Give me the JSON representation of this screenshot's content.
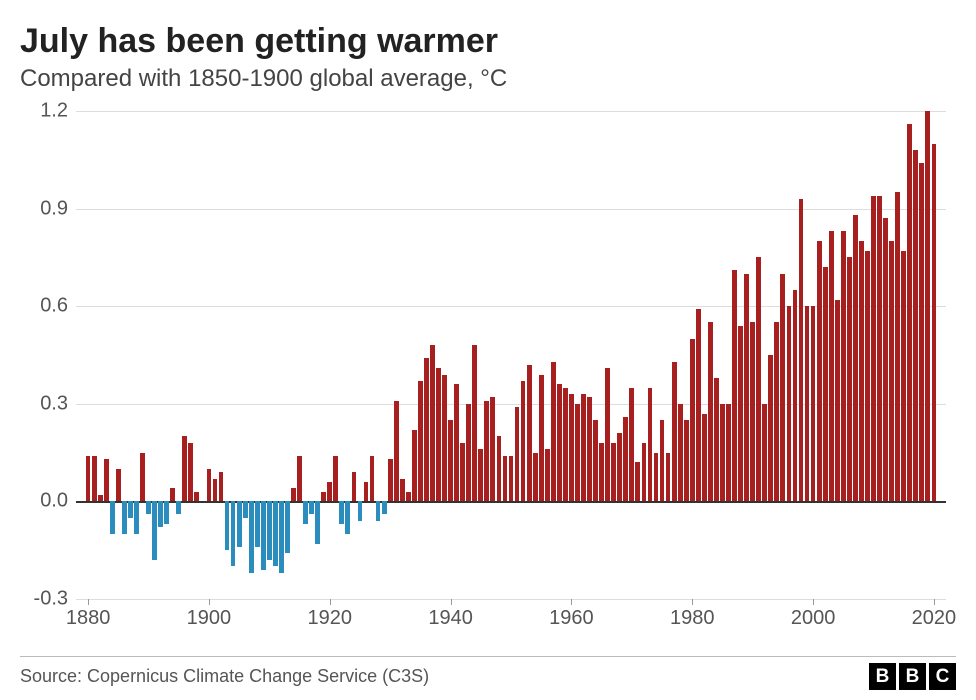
{
  "title": "July has been getting warmer",
  "subtitle": "Compared with 1850-1900 global average, °C",
  "source": "Source: Copernicus Climate Change Service (C3S)",
  "logo_letters": [
    "B",
    "B",
    "C"
  ],
  "chart": {
    "type": "bar",
    "ylim": [
      -0.3,
      1.2
    ],
    "yticks": [
      -0.3,
      0.0,
      0.3,
      0.6,
      0.9,
      1.2
    ],
    "ytick_labels": [
      "-0.3",
      "0.0",
      "0.3",
      "0.6",
      "0.9",
      "1.2"
    ],
    "xlim": [
      1878,
      2022
    ],
    "xticks": [
      1880,
      1900,
      1920,
      1940,
      1960,
      1980,
      2000,
      2020
    ],
    "xtick_labels": [
      "1880",
      "1900",
      "1920",
      "1940",
      "1960",
      "1980",
      "2000",
      "2020"
    ],
    "grid_color": "#dddddd",
    "zero_color": "#333333",
    "pos_color": "#a81f1f",
    "neg_color": "#2b8cbe",
    "background_color": "#ffffff",
    "label_fontsize": 20,
    "title_fontsize": 34,
    "subtitle_fontsize": 24,
    "bar_gap_ratio": 0.2,
    "years": [
      1880,
      1881,
      1882,
      1883,
      1884,
      1885,
      1886,
      1887,
      1888,
      1889,
      1890,
      1891,
      1892,
      1893,
      1894,
      1895,
      1896,
      1897,
      1898,
      1899,
      1900,
      1901,
      1902,
      1903,
      1904,
      1905,
      1906,
      1907,
      1908,
      1909,
      1910,
      1911,
      1912,
      1913,
      1914,
      1915,
      1916,
      1917,
      1918,
      1919,
      1920,
      1921,
      1922,
      1923,
      1924,
      1925,
      1926,
      1927,
      1928,
      1929,
      1930,
      1931,
      1932,
      1933,
      1934,
      1935,
      1936,
      1937,
      1938,
      1939,
      1940,
      1941,
      1942,
      1943,
      1944,
      1945,
      1946,
      1947,
      1948,
      1949,
      1950,
      1951,
      1952,
      1953,
      1954,
      1955,
      1956,
      1957,
      1958,
      1959,
      1960,
      1961,
      1962,
      1963,
      1964,
      1965,
      1966,
      1967,
      1968,
      1969,
      1970,
      1971,
      1972,
      1973,
      1974,
      1975,
      1976,
      1977,
      1978,
      1979,
      1980,
      1981,
      1982,
      1983,
      1984,
      1985,
      1986,
      1987,
      1988,
      1989,
      1990,
      1991,
      1992,
      1993,
      1994,
      1995,
      1996,
      1997,
      1998,
      1999,
      2000,
      2001,
      2002,
      2003,
      2004,
      2005,
      2006,
      2007,
      2008,
      2009,
      2010,
      2011,
      2012,
      2013,
      2014,
      2015,
      2016,
      2017,
      2018,
      2019,
      2020
    ],
    "values": [
      0.14,
      0.14,
      0.02,
      0.13,
      -0.1,
      0.1,
      -0.1,
      -0.05,
      -0.1,
      0.15,
      -0.04,
      -0.18,
      -0.08,
      -0.07,
      0.04,
      -0.04,
      0.2,
      0.18,
      0.03,
      0.0,
      0.1,
      0.07,
      0.09,
      -0.15,
      -0.2,
      -0.14,
      -0.05,
      -0.22,
      -0.14,
      -0.21,
      -0.18,
      -0.2,
      -0.22,
      -0.16,
      0.04,
      0.14,
      -0.07,
      -0.04,
      -0.13,
      0.03,
      0.06,
      0.14,
      -0.07,
      -0.1,
      0.09,
      -0.06,
      0.06,
      0.14,
      -0.06,
      -0.04,
      0.13,
      0.31,
      0.07,
      0.03,
      0.22,
      0.37,
      0.44,
      0.48,
      0.41,
      0.39,
      0.25,
      0.36,
      0.18,
      0.3,
      0.48,
      0.16,
      0.31,
      0.32,
      0.2,
      0.14,
      0.14,
      0.29,
      0.37,
      0.42,
      0.15,
      0.39,
      0.16,
      0.43,
      0.36,
      0.35,
      0.33,
      0.3,
      0.33,
      0.32,
      0.25,
      0.18,
      0.41,
      0.18,
      0.21,
      0.26,
      0.35,
      0.12,
      0.18,
      0.35,
      0.15,
      0.25,
      0.15,
      0.43,
      0.3,
      0.25,
      0.5,
      0.59,
      0.27,
      0.55,
      0.38,
      0.3,
      0.3,
      0.71,
      0.54,
      0.7,
      0.55,
      0.75,
      0.3,
      0.45,
      0.55,
      0.7,
      0.6,
      0.65,
      0.93,
      0.6,
      0.6,
      0.8,
      0.72,
      0.83,
      0.62,
      0.83,
      0.75,
      0.88,
      0.8,
      0.77,
      0.94,
      0.94,
      0.87,
      0.8,
      0.95,
      0.77,
      1.16,
      1.08,
      1.04,
      1.2,
      1.1
    ]
  }
}
